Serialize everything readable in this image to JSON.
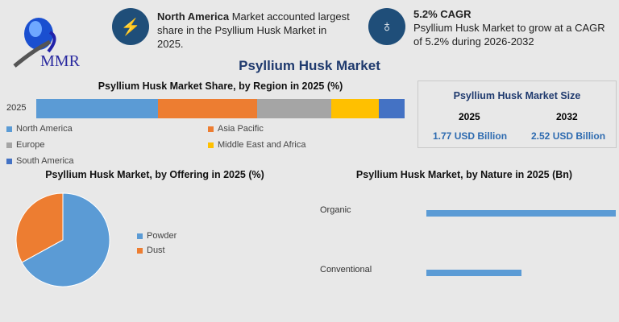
{
  "header": {
    "logo_text": "MMR",
    "highlight1": {
      "bold": "North America",
      "text": " Market accounted largest share in the Psyllium Husk Market in 2025.",
      "icon": "lightning-icon"
    },
    "highlight2": {
      "bold": "5.2% CAGR",
      "text": "Psyllium Husk Market to grow at a CAGR of 5.2% during 2026-2032",
      "icon": "growth-icon"
    },
    "main_title": "Psyllium Husk Market"
  },
  "market_size": {
    "title": "Psyllium Husk Market Size",
    "years": [
      "2025",
      "2032"
    ],
    "values": [
      "1.77 USD Billion",
      "2.52 USD Billion"
    ]
  },
  "chart_data": [
    {
      "type": "bar",
      "orientation": "horizontal-stacked",
      "title": "Psyllium Husk Market Share, by Region in 2025 (%)",
      "categories": [
        "2025"
      ],
      "series": [
        {
          "name": "North America",
          "values": [
            33
          ],
          "color": "#5b9bd5"
        },
        {
          "name": "Asia Pacific",
          "values": [
            27
          ],
          "color": "#ed7d31"
        },
        {
          "name": "Europe",
          "values": [
            20
          ],
          "color": "#a5a5a5"
        },
        {
          "name": "Middle East and Africa",
          "values": [
            13
          ],
          "color": "#ffc000"
        },
        {
          "name": "South America",
          "values": [
            7
          ],
          "color": "#4472c4"
        }
      ],
      "legend": "bottom"
    },
    {
      "type": "pie",
      "title": "Psyllium Husk Market, by Offering in 2025 (%)",
      "slices": [
        {
          "name": "Powder",
          "value": 67,
          "color": "#5b9bd5"
        },
        {
          "name": "Dust",
          "value": 33,
          "color": "#ed7d31"
        }
      ],
      "legend": "right"
    },
    {
      "type": "bar",
      "orientation": "horizontal",
      "title": "Psyllium Husk Market, by Nature in 2025 (Bn)",
      "categories": [
        "Organic",
        "Conventional"
      ],
      "values": [
        1.18,
        0.59
      ],
      "color": "#5b9bd5"
    }
  ]
}
